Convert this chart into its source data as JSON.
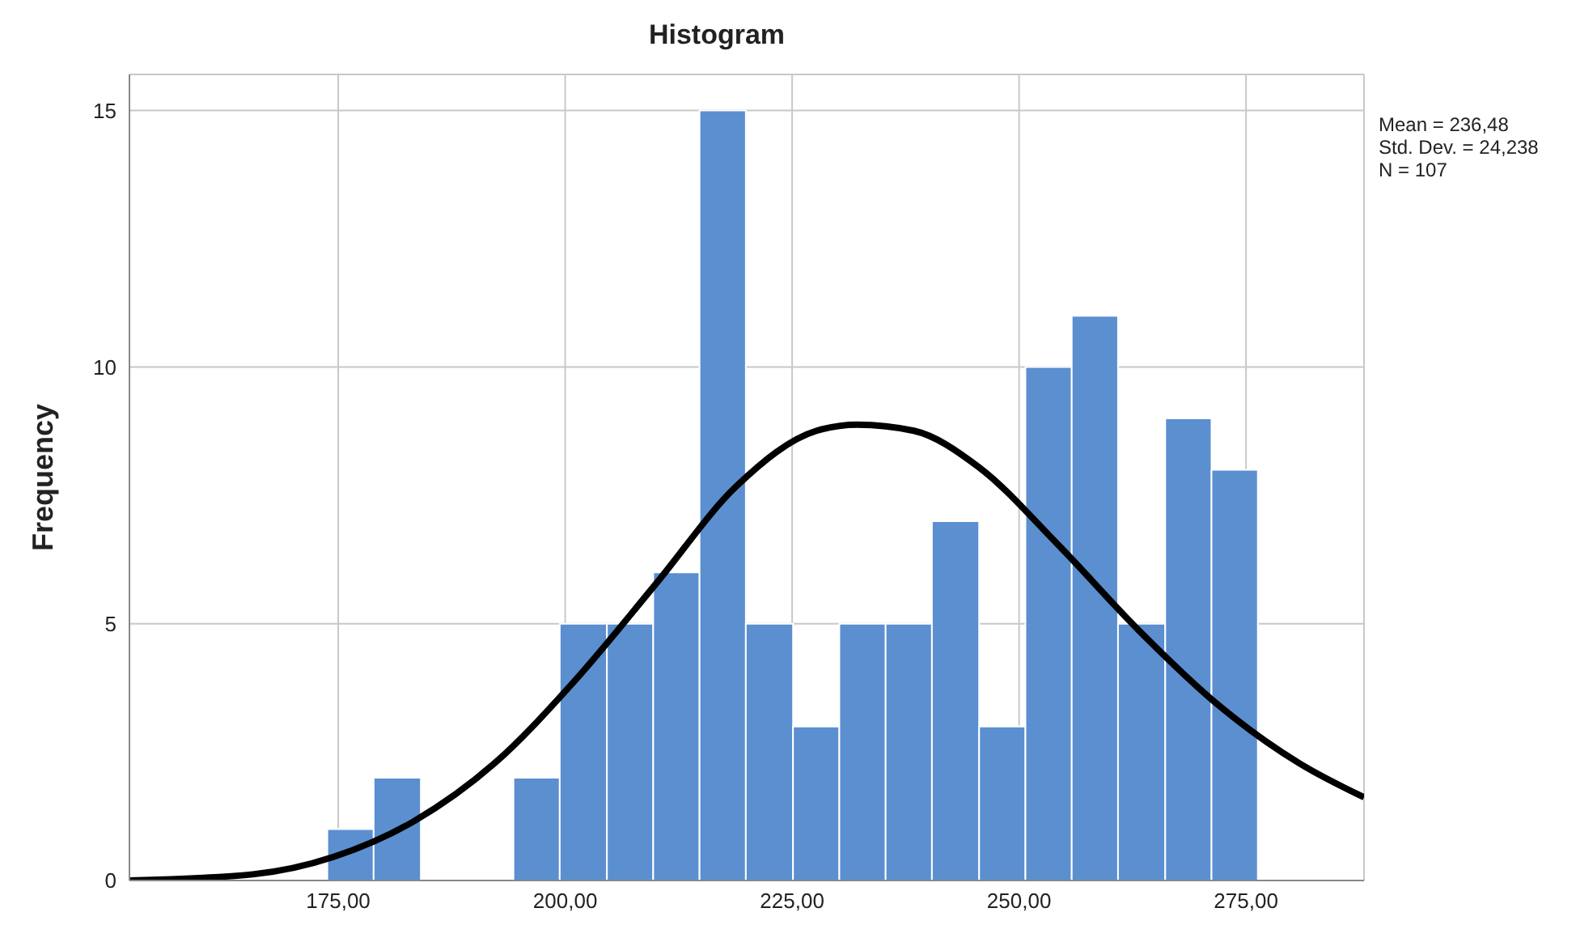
{
  "chart_data": {
    "type": "histogram",
    "title": "Histogram",
    "ylabel": "Frequency",
    "bins": [
      173.8,
      178.9,
      184.1,
      194.3,
      199.4,
      204.6,
      209.7,
      214.8,
      219.9,
      225.1,
      230.2,
      235.3,
      240.4,
      245.6,
      250.7,
      255.8,
      260.9,
      266.1,
      271.2,
      276.3
    ],
    "values": [
      1,
      2,
      0,
      2,
      5,
      5,
      6,
      15,
      5,
      3,
      5,
      5,
      7,
      3,
      10,
      11,
      5,
      9,
      8
    ],
    "color": "#5b8fd0",
    "series": [
      {
        "type": "line",
        "color": "#000000",
        "x": [
          152,
          165.6,
          174.5,
          183.4,
          192.2,
          201.1,
          210,
          218.8,
          227.7,
          232.2,
          238.4,
          245.5,
          254.3,
          263.2,
          272,
          280.9,
          288
        ],
        "values": [
          0,
          0.12,
          0.46,
          1.16,
          2.28,
          3.9,
          5.78,
          7.67,
          8.76,
          8.88,
          8.76,
          8.06,
          6.54,
          4.87,
          3.41,
          2.28,
          1.62
        ]
      }
    ],
    "xlim": [
      152,
      288
    ],
    "ylim": [
      0,
      15.7
    ],
    "xticks": [
      {
        "value": 175,
        "label": "175,00"
      },
      {
        "value": 200,
        "label": "200,00"
      },
      {
        "value": 225,
        "label": "225,00"
      },
      {
        "value": 250,
        "label": "250,00"
      },
      {
        "value": 275,
        "label": "275,00"
      }
    ],
    "yticks": [
      0,
      5,
      10,
      15
    ],
    "grid": true,
    "annotations": [
      "Mean = 236,48",
      "Std. Dev. = 24,238",
      "N = 107"
    ]
  }
}
